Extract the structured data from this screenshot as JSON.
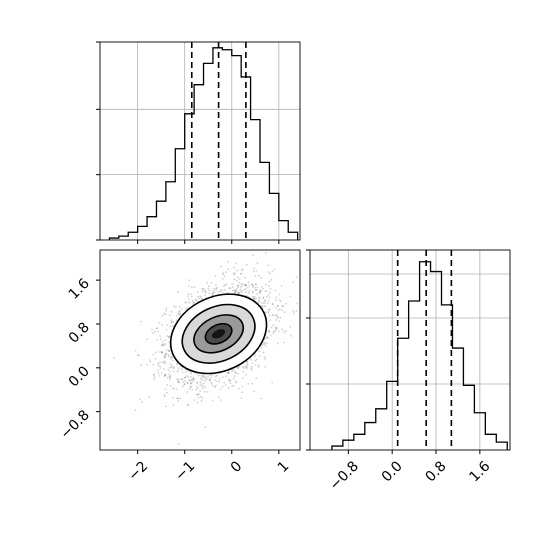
{
  "chart_data": [
    {
      "type": "histogram",
      "panel": "top-left",
      "variable_axis": "x",
      "xlim": [
        -2.8,
        1.45
      ],
      "grid": true,
      "bins": [
        {
          "x0": -2.6,
          "x1": -2.4,
          "h": 0.01
        },
        {
          "x0": -2.4,
          "x1": -2.2,
          "h": 0.02
        },
        {
          "x0": -2.2,
          "x1": -2.0,
          "h": 0.04
        },
        {
          "x0": -2.0,
          "x1": -1.8,
          "h": 0.07
        },
        {
          "x0": -1.8,
          "x1": -1.6,
          "h": 0.12
        },
        {
          "x0": -1.6,
          "x1": -1.4,
          "h": 0.2
        },
        {
          "x0": -1.4,
          "x1": -1.2,
          "h": 0.3
        },
        {
          "x0": -1.2,
          "x1": -1.0,
          "h": 0.47
        },
        {
          "x0": -1.0,
          "x1": -0.8,
          "h": 0.65
        },
        {
          "x0": -0.8,
          "x1": -0.6,
          "h": 0.8
        },
        {
          "x0": -0.6,
          "x1": -0.4,
          "h": 0.91
        },
        {
          "x0": -0.4,
          "x1": -0.2,
          "h": 0.99
        },
        {
          "x0": -0.2,
          "x1": 0.0,
          "h": 0.98
        },
        {
          "x0": 0.0,
          "x1": 0.2,
          "h": 0.95
        },
        {
          "x0": 0.2,
          "x1": 0.4,
          "h": 0.84
        },
        {
          "x0": 0.4,
          "x1": 0.6,
          "h": 0.62
        },
        {
          "x0": 0.6,
          "x1": 0.8,
          "h": 0.4
        },
        {
          "x0": 0.8,
          "x1": 1.0,
          "h": 0.24
        },
        {
          "x0": 1.0,
          "x1": 1.2,
          "h": 0.1
        },
        {
          "x0": 1.2,
          "x1": 1.4,
          "h": 0.04
        }
      ],
      "quantiles": [
        -0.85,
        -0.28,
        0.3
      ]
    },
    {
      "type": "heatmap",
      "panel": "bottom-left",
      "xlim": [
        -2.8,
        1.45
      ],
      "ylim": [
        -1.5,
        2.15
      ],
      "xticks": [
        -2,
        -1,
        0,
        1
      ],
      "xtick_labels": [
        "−2",
        "−1",
        "0",
        "1"
      ],
      "yticks": [
        -0.8,
        0.0,
        0.8,
        1.6
      ],
      "ytick_labels": [
        "−0.8",
        "0.0",
        "0.8",
        "1.6"
      ],
      "density_center": {
        "x": -0.28,
        "y": 0.62
      },
      "contour_levels": [
        0.12,
        0.39,
        0.68,
        0.86
      ],
      "point_count": 3000
    },
    {
      "type": "histogram",
      "panel": "bottom-right",
      "variable_axis": "y",
      "xlim": [
        -1.5,
        2.15
      ],
      "xticks": [
        -0.8,
        0.0,
        0.8,
        1.6
      ],
      "xtick_labels": [
        "−0.8",
        "0.0",
        "0.8",
        "1.6"
      ],
      "grid": true,
      "bins": [
        {
          "x0": -1.1,
          "x1": -0.9,
          "h": 0.02
        },
        {
          "x0": -0.9,
          "x1": -0.7,
          "h": 0.05
        },
        {
          "x0": -0.7,
          "x1": -0.5,
          "h": 0.08
        },
        {
          "x0": -0.5,
          "x1": -0.3,
          "h": 0.14
        },
        {
          "x0": -0.3,
          "x1": -0.1,
          "h": 0.21
        },
        {
          "x0": -0.1,
          "x1": 0.1,
          "h": 0.35
        },
        {
          "x0": 0.1,
          "x1": 0.3,
          "h": 0.57
        },
        {
          "x0": 0.3,
          "x1": 0.5,
          "h": 0.76
        },
        {
          "x0": 0.5,
          "x1": 0.7,
          "h": 0.96
        },
        {
          "x0": 0.7,
          "x1": 0.9,
          "h": 0.91
        },
        {
          "x0": 0.9,
          "x1": 1.1,
          "h": 0.74
        },
        {
          "x0": 1.1,
          "x1": 1.3,
          "h": 0.52
        },
        {
          "x0": 1.3,
          "x1": 1.5,
          "h": 0.33
        },
        {
          "x0": 1.5,
          "x1": 1.7,
          "h": 0.19
        },
        {
          "x0": 1.7,
          "x1": 1.9,
          "h": 0.08
        },
        {
          "x0": 1.9,
          "x1": 2.1,
          "h": 0.04
        }
      ],
      "quantiles": [
        0.1,
        0.62,
        1.08
      ]
    }
  ]
}
